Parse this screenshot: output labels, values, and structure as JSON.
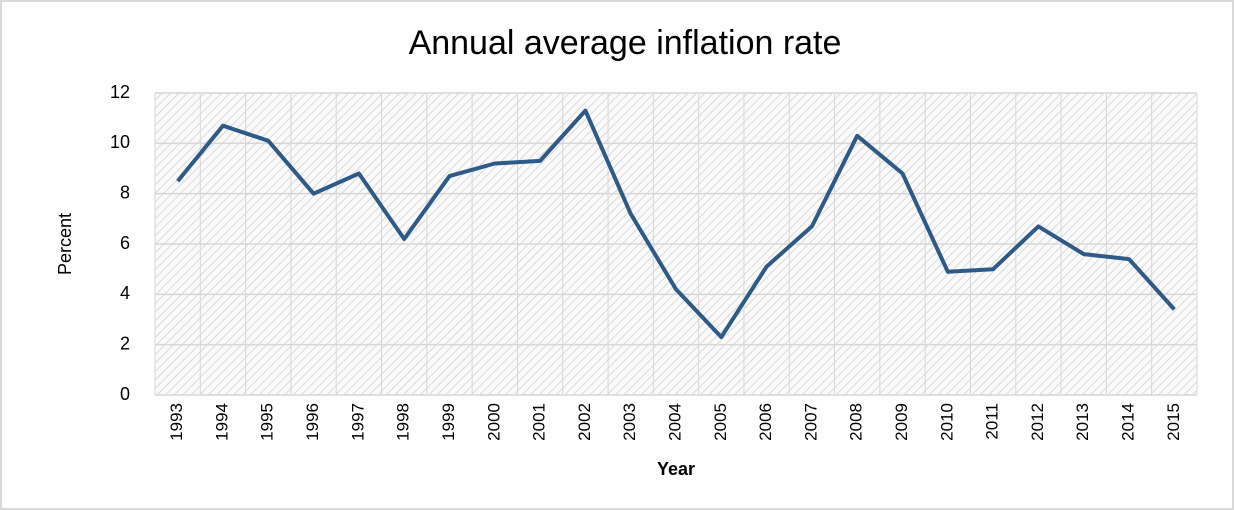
{
  "chart_data": {
    "type": "line",
    "title": "Annual average inflation rate",
    "x_label": "Year",
    "y_label": "Percent",
    "categories": [
      "1993",
      "1994",
      "1995",
      "1996",
      "1997",
      "1998",
      "1999",
      "2000",
      "2001",
      "2002",
      "2003",
      "2004",
      "2005",
      "2006",
      "2007",
      "2008",
      "2009",
      "2010",
      "2011",
      "2012",
      "2013",
      "2014",
      "2015"
    ],
    "values": [
      8.5,
      10.7,
      10.1,
      8.0,
      8.8,
      6.2,
      8.7,
      9.2,
      9.3,
      11.3,
      7.2,
      4.2,
      2.3,
      5.1,
      6.7,
      10.3,
      8.8,
      4.9,
      5.0,
      6.7,
      5.6,
      5.4,
      3.4
    ],
    "color": "#2e5a88",
    "ylim": [
      0,
      12
    ],
    "yticks": [
      0,
      2,
      4,
      6,
      8,
      10,
      12
    ],
    "grid": true
  }
}
